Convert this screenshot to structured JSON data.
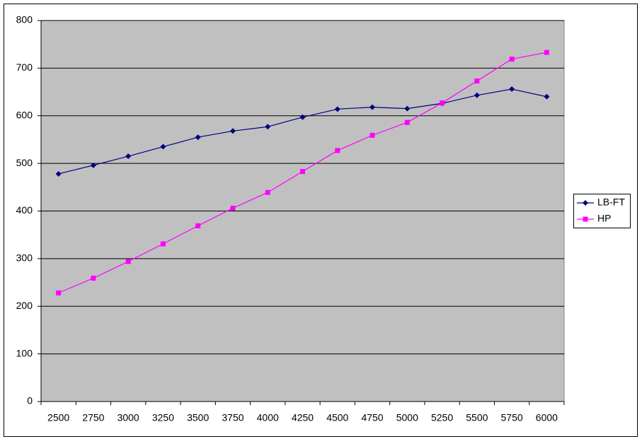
{
  "chart_data": {
    "type": "line",
    "categories": [
      "2500",
      "2750",
      "3000",
      "3250",
      "3500",
      "3750",
      "4000",
      "4250",
      "4500",
      "4750",
      "5000",
      "5250",
      "5500",
      "5750",
      "6000"
    ],
    "series": [
      {
        "name": "LB-FT",
        "color": "#000080",
        "marker": "diamond",
        "values": [
          478,
          496,
          515,
          535,
          555,
          568,
          577,
          597,
          614,
          618,
          615,
          626,
          643,
          656,
          640
        ]
      },
      {
        "name": "HP",
        "color": "#ff00ff",
        "marker": "square",
        "values": [
          228,
          259,
          294,
          331,
          369,
          406,
          439,
          483,
          527,
          559,
          586,
          627,
          673,
          719,
          733
        ]
      }
    ],
    "ylim": [
      0,
      800
    ],
    "yticks": [
      0,
      100,
      200,
      300,
      400,
      500,
      600,
      700,
      800
    ],
    "grid": true,
    "legend": "right"
  }
}
